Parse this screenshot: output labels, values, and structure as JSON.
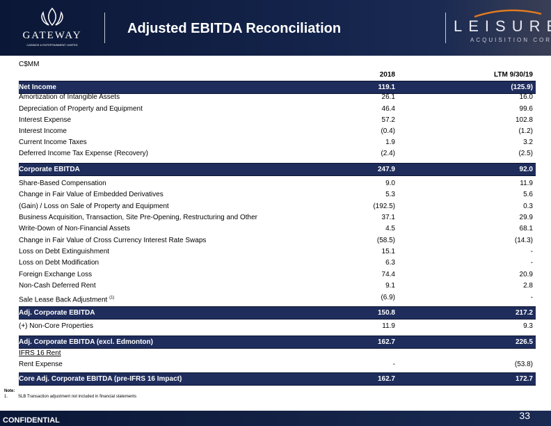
{
  "header": {
    "logo_left": {
      "name": "GATEWAY",
      "tagline": "CASINOS & ENTERTAINMENT LIMITED"
    },
    "title": "Adjusted EBITDA Reconciliation",
    "logo_right": {
      "name": "LEISURE",
      "tagline": "ACQUISITION CORP"
    }
  },
  "table": {
    "unit": "C$MM",
    "columns": [
      "2018",
      "LTM 9/30/19"
    ],
    "rows": [
      {
        "label": "Net Income",
        "values": [
          "119.1",
          "(125.9)"
        ]
      },
      {
        "label": "Amortization of Intangible Assets",
        "values": [
          "26.1",
          "16.0"
        ]
      },
      {
        "label": "Depreciation of Property and Equipment",
        "values": [
          "46.4",
          "99.6"
        ]
      },
      {
        "label": "Interest Expense",
        "values": [
          "57.2",
          "102.8"
        ]
      },
      {
        "label": "Interest Income",
        "values": [
          "(0.4)",
          "(1.2)"
        ]
      },
      {
        "label": "Current Income Taxes",
        "values": [
          "1.9",
          "3.2"
        ]
      },
      {
        "label": "Deferred Income Tax Expense (Recovery)",
        "values": [
          "(2.4)",
          "(2.5)"
        ]
      },
      {
        "label": "Corporate EBITDA",
        "values": [
          "247.9",
          "92.0"
        ]
      },
      {
        "label": "Share-Based Compensation",
        "values": [
          "9.0",
          "11.9"
        ]
      },
      {
        "label": "Change in Fair Value of Embedded Derivatives",
        "values": [
          "5.3",
          "5.6"
        ]
      },
      {
        "label": "(Gain) / Loss on Sale of Property and Equipment",
        "values": [
          "(192.5)",
          "0.3"
        ]
      },
      {
        "label": "Business Acquisition, Transaction, Site Pre-Opening, Restructuring and Other",
        "values": [
          "37.1",
          "29.9"
        ]
      },
      {
        "label": "Write-Down of Non-Financial Assets",
        "values": [
          "4.5",
          "68.1"
        ]
      },
      {
        "label": "Change in Fair Value of Cross Currency Interest Rate Swaps",
        "values": [
          "(58.5)",
          "(14.3)"
        ]
      },
      {
        "label": "Loss on Debt Extinguishment",
        "values": [
          "15.1",
          "-"
        ]
      },
      {
        "label": "Loss on Debt Modification",
        "values": [
          "6.3",
          "-"
        ]
      },
      {
        "label": "Foreign Exchange Loss",
        "values": [
          "74.4",
          "20.9"
        ]
      },
      {
        "label": "Non-Cash Deferred Rent",
        "values": [
          "9.1",
          "2.8"
        ]
      },
      {
        "label": "Sale Lease Back Adjustment",
        "note": "(1)",
        "values": [
          "(6.9)",
          "-"
        ]
      },
      {
        "label": "Adj. Corporate EBITDA",
        "values": [
          "150.8",
          "217.2"
        ]
      },
      {
        "label": "(+) Non-Core Properties",
        "values": [
          "11.9",
          "9.3"
        ]
      },
      {
        "label": "Adj. Corporate EBITDA (excl. Edmonton)",
        "values": [
          "162.7",
          "226.5"
        ]
      },
      {
        "label": "IFRS 16 Rent"
      },
      {
        "label": "Rent Expense",
        "values": [
          "-",
          "(53.8)"
        ]
      },
      {
        "label": "Core Adj. Corporate EBITDA (pre-IFRS 16 Impact)",
        "values": [
          "162.7",
          "172.7"
        ]
      }
    ]
  },
  "notes": {
    "heading": "Note:",
    "items": [
      {
        "number": "1.",
        "text": "SLB Transaction adjustment not included in financial statements"
      }
    ]
  },
  "footer": {
    "label": "CONFIDENTIAL",
    "page": "33"
  }
}
